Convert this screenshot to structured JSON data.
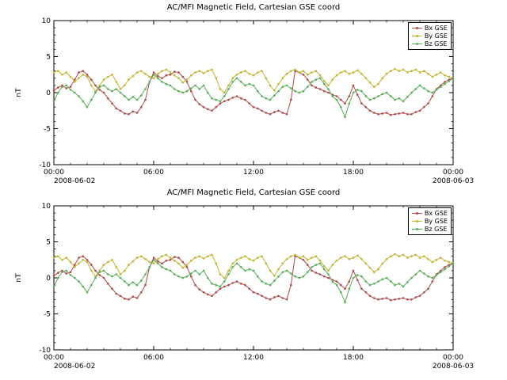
{
  "page": {
    "background": "#ffffff"
  },
  "chart_data": [
    {
      "type": "line",
      "title": "AC/MFI Magnetic Field, Cartesian GSE coord",
      "ylabel": "nT",
      "ylim": [
        -10,
        10
      ],
      "y_ticks": [
        -10,
        -5,
        0,
        5,
        10
      ],
      "xlim": [
        0,
        24
      ],
      "x_step": 0.25,
      "x_tick_hours": [
        0,
        6,
        12,
        18,
        24
      ],
      "x_tick_labels": [
        "00:00",
        "06:00",
        "12:00",
        "18:00",
        "00:00"
      ],
      "x_start_date": "2008-06-02",
      "x_end_date": "2008-06-03",
      "legend_position": "top-right",
      "grid": false,
      "series": [
        {
          "name": "Bx GSE",
          "color": "#b04a4a",
          "values": [
            0.3,
            0.7,
            1.0,
            0.6,
            0.8,
            1.8,
            2.8,
            3.0,
            2.5,
            1.8,
            1.0,
            0.4,
            0.0,
            -0.8,
            -1.5,
            -2.2,
            -2.5,
            -2.9,
            -3.0,
            -2.6,
            -2.8,
            -2.0,
            -1.0,
            1.5,
            2.8,
            2.3,
            2.0,
            2.4,
            2.5,
            2.9,
            2.8,
            2.2,
            1.5,
            0.2,
            -1.0,
            -1.6,
            -2.0,
            -2.3,
            -2.5,
            -2.0,
            -1.5,
            -1.2,
            -1.0,
            -0.7,
            -0.5,
            -0.8,
            -1.0,
            -1.5,
            -2.0,
            -2.2,
            -2.5,
            -2.8,
            -3.0,
            -2.7,
            -2.5,
            -2.8,
            -3.0,
            -1.0,
            3.0,
            2.8,
            2.5,
            1.8,
            1.0,
            0.7,
            0.5,
            0.2,
            0.0,
            -0.3,
            -0.5,
            -1.0,
            -1.5,
            -0.5,
            1.0,
            -0.3,
            -1.5,
            -2.0,
            -2.5,
            -2.8,
            -3.0,
            -2.9,
            -2.8,
            -3.1,
            -3.0,
            -2.9,
            -2.8,
            -3.0,
            -3.0,
            -2.7,
            -2.5,
            -2.0,
            -1.5,
            -0.5,
            0.5,
            1.0,
            1.5,
            1.8,
            2.0
          ]
        },
        {
          "name": "By GSE",
          "color": "#c3b42e",
          "values": [
            2.8,
            3.0,
            2.5,
            2.8,
            2.2,
            1.5,
            2.0,
            2.5,
            2.2,
            1.0,
            0.2,
            1.0,
            1.8,
            2.2,
            2.5,
            1.5,
            0.5,
            1.0,
            1.8,
            2.3,
            2.8,
            3.0,
            2.6,
            2.2,
            2.0,
            2.6,
            3.0,
            3.2,
            2.8,
            2.4,
            2.0,
            1.4,
            1.8,
            2.4,
            2.8,
            3.0,
            2.7,
            3.0,
            3.2,
            2.0,
            0.5,
            0.0,
            1.0,
            2.0,
            2.5,
            2.8,
            3.0,
            2.6,
            2.4,
            2.8,
            3.0,
            2.0,
            1.0,
            0.3,
            1.2,
            2.0,
            2.6,
            3.0,
            3.2,
            2.8,
            3.0,
            2.5,
            2.8,
            3.0,
            2.4,
            1.6,
            1.0,
            1.8,
            2.4,
            2.8,
            3.0,
            2.6,
            2.8,
            3.1,
            2.6,
            2.0,
            1.4,
            0.8,
            1.2,
            2.0,
            2.6,
            3.0,
            3.3,
            3.0,
            3.2,
            2.8,
            3.0,
            3.2,
            2.8,
            3.0,
            2.6,
            2.2,
            2.5,
            2.8,
            2.4,
            2.2,
            2.0
          ]
        },
        {
          "name": "Bz GSE",
          "color": "#57ae57",
          "values": [
            -1.2,
            0.0,
            0.8,
            1.0,
            0.4,
            0.0,
            -0.5,
            -1.2,
            -2.0,
            -1.0,
            0.0,
            0.8,
            1.0,
            0.5,
            0.2,
            0.5,
            0.0,
            -0.5,
            -1.0,
            -0.6,
            -1.0,
            -0.4,
            0.5,
            1.5,
            2.5,
            2.0,
            1.5,
            1.2,
            1.0,
            0.5,
            0.2,
            0.0,
            0.2,
            0.6,
            1.0,
            0.5,
            1.0,
            0.0,
            -0.8,
            -1.0,
            -1.2,
            -0.5,
            0.5,
            1.5,
            2.0,
            1.5,
            1.0,
            1.2,
            1.0,
            0.2,
            -0.5,
            -0.8,
            -1.0,
            -0.4,
            0.2,
            0.8,
            1.0,
            0.6,
            0.2,
            0.0,
            0.2,
            0.8,
            1.5,
            1.8,
            2.0,
            1.2,
            0.5,
            -0.5,
            -1.0,
            -2.0,
            -3.4,
            -1.5,
            0.0,
            0.4,
            0.2,
            -0.5,
            -1.0,
            -0.8,
            -0.5,
            -0.2,
            0.0,
            -0.5,
            -1.0,
            -0.8,
            -1.2,
            -0.6,
            0.0,
            0.5,
            1.0,
            0.6,
            0.2,
            0.0,
            0.4,
            0.8,
            1.2,
            1.6,
            2.0
          ]
        }
      ]
    },
    {
      "type": "line",
      "title": "AC/MFI Magnetic Field, Cartesian GSE coord",
      "ylabel": "nT",
      "ylim": [
        -10,
        10
      ],
      "y_ticks": [
        -10,
        -5,
        0,
        5,
        10
      ],
      "xlim": [
        0,
        24
      ],
      "x_step": 0.25,
      "x_tick_hours": [
        0,
        6,
        12,
        18,
        24
      ],
      "x_tick_labels": [
        "00:00",
        "06:00",
        "12:00",
        "18:00",
        "00:00"
      ],
      "x_start_date": "2008-06-02",
      "x_end_date": "2008-06-03",
      "legend_position": "top-right",
      "grid": false,
      "series": [
        {
          "name": "Bx GSE",
          "color": "#b04a4a",
          "values": [
            0.3,
            0.7,
            1.0,
            0.6,
            0.8,
            1.8,
            2.8,
            3.0,
            2.5,
            1.8,
            1.0,
            0.4,
            0.0,
            -0.8,
            -1.5,
            -2.2,
            -2.5,
            -2.9,
            -3.0,
            -2.6,
            -2.8,
            -2.0,
            -1.0,
            1.5,
            2.8,
            2.3,
            2.0,
            2.4,
            2.5,
            2.9,
            2.8,
            2.2,
            1.5,
            0.2,
            -1.0,
            -1.6,
            -2.0,
            -2.3,
            -2.5,
            -2.0,
            -1.5,
            -1.2,
            -1.0,
            -0.7,
            -0.5,
            -0.8,
            -1.0,
            -1.5,
            -2.0,
            -2.2,
            -2.5,
            -2.8,
            -3.0,
            -2.7,
            -2.5,
            -2.8,
            -3.0,
            -1.0,
            3.0,
            2.8,
            2.5,
            1.8,
            1.0,
            0.7,
            0.5,
            0.2,
            0.0,
            -0.3,
            -0.5,
            -1.0,
            -1.5,
            -0.5,
            1.0,
            -0.3,
            -1.5,
            -2.0,
            -2.5,
            -2.8,
            -3.0,
            -2.9,
            -2.8,
            -3.1,
            -3.0,
            -2.9,
            -2.8,
            -3.0,
            -3.0,
            -2.7,
            -2.5,
            -2.0,
            -1.5,
            -0.5,
            0.5,
            1.0,
            1.5,
            1.8,
            2.0
          ]
        },
        {
          "name": "By GSE",
          "color": "#c3b42e",
          "values": [
            2.8,
            3.0,
            2.5,
            2.8,
            2.2,
            1.5,
            2.0,
            2.5,
            2.2,
            1.0,
            0.2,
            1.0,
            1.8,
            2.2,
            2.5,
            1.5,
            0.5,
            1.0,
            1.8,
            2.3,
            2.8,
            3.0,
            2.6,
            2.2,
            2.0,
            2.6,
            3.0,
            3.2,
            2.8,
            2.4,
            2.0,
            1.4,
            1.8,
            2.4,
            2.8,
            3.0,
            2.7,
            3.0,
            3.2,
            2.0,
            0.5,
            0.0,
            1.0,
            2.0,
            2.5,
            2.8,
            3.0,
            2.6,
            2.4,
            2.8,
            3.0,
            2.0,
            1.0,
            0.3,
            1.2,
            2.0,
            2.6,
            3.0,
            3.2,
            2.8,
            3.0,
            2.5,
            2.8,
            3.0,
            2.4,
            1.6,
            1.0,
            1.8,
            2.4,
            2.8,
            3.0,
            2.6,
            2.8,
            3.1,
            2.6,
            2.0,
            1.4,
            0.8,
            1.2,
            2.0,
            2.6,
            3.0,
            3.3,
            3.0,
            3.2,
            2.8,
            3.0,
            3.2,
            2.8,
            3.0,
            2.6,
            2.2,
            2.5,
            2.8,
            2.4,
            2.2,
            2.0
          ]
        },
        {
          "name": "Bz GSE",
          "color": "#57ae57",
          "values": [
            -1.2,
            0.0,
            0.8,
            1.0,
            0.4,
            0.0,
            -0.5,
            -1.2,
            -2.0,
            -1.0,
            0.0,
            0.8,
            1.0,
            0.5,
            0.2,
            0.5,
            0.0,
            -0.5,
            -1.0,
            -0.6,
            -1.0,
            -0.4,
            0.5,
            1.5,
            2.5,
            2.0,
            1.5,
            1.2,
            1.0,
            0.5,
            0.2,
            0.0,
            0.2,
            0.6,
            1.0,
            0.5,
            1.0,
            0.0,
            -0.8,
            -1.0,
            -1.2,
            -0.5,
            0.5,
            1.5,
            2.0,
            1.5,
            1.0,
            1.2,
            1.0,
            0.2,
            -0.5,
            -0.8,
            -1.0,
            -0.4,
            0.2,
            0.8,
            1.0,
            0.6,
            0.2,
            0.0,
            0.2,
            0.8,
            1.5,
            1.8,
            2.0,
            1.2,
            0.5,
            -0.5,
            -1.0,
            -2.0,
            -3.4,
            -1.5,
            0.0,
            0.4,
            0.2,
            -0.5,
            -1.0,
            -0.8,
            -0.5,
            -0.2,
            0.0,
            -0.5,
            -1.0,
            -0.8,
            -1.2,
            -0.6,
            0.0,
            0.5,
            1.0,
            0.6,
            0.2,
            0.0,
            0.4,
            0.8,
            1.2,
            1.6,
            2.0
          ]
        }
      ]
    }
  ]
}
